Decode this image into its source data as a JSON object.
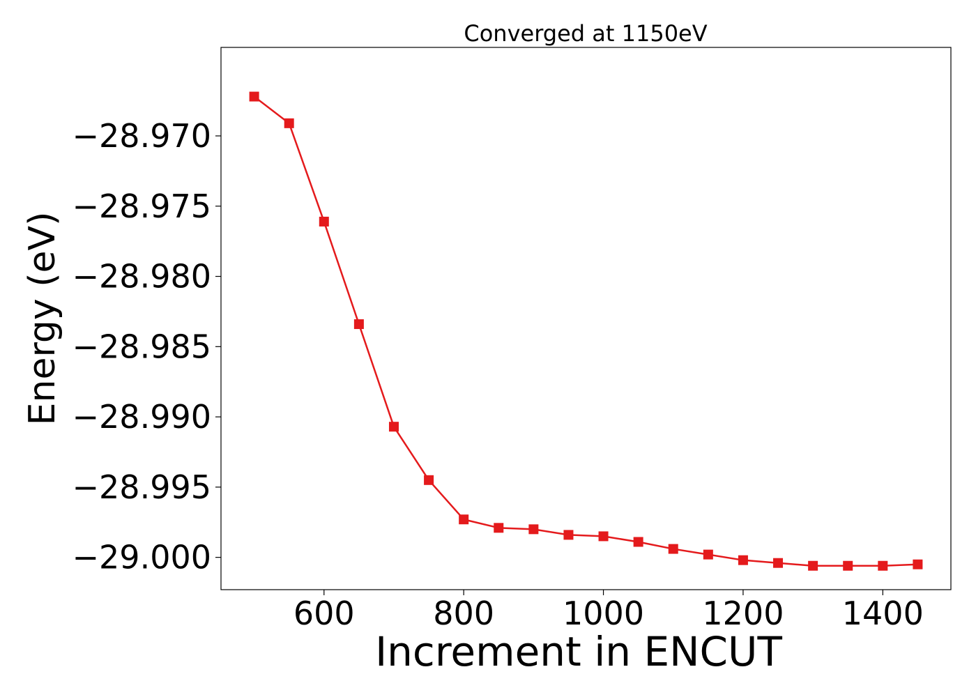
{
  "chart_data": {
    "type": "line",
    "title": "Converged at 1150eV",
    "xlabel": "Increment in ENCUT",
    "ylabel": "Energy (eV)",
    "x": [
      500,
      550,
      600,
      650,
      700,
      750,
      800,
      850,
      900,
      950,
      1000,
      1050,
      1100,
      1150,
      1200,
      1250,
      1300,
      1350,
      1400,
      1450
    ],
    "series": [
      {
        "name": "",
        "color": "#e41a1c",
        "marker": "square",
        "values": [
          -28.9672,
          -28.9691,
          -28.9761,
          -28.9834,
          -28.9907,
          -28.9945,
          -28.9973,
          -28.9979,
          -28.998,
          -28.9984,
          -28.9985,
          -28.9989,
          -28.9994,
          -28.9998,
          -29.0002,
          -29.0004,
          -29.0006,
          -29.0006,
          -29.0006,
          -29.0005
        ]
      }
    ],
    "xlim": [
      452.5,
      1497.5
    ],
    "ylim": [
      -29.0023,
      -28.9637
    ],
    "xticks": [
      600,
      800,
      1000,
      1200,
      1400
    ],
    "xtick_labels": [
      "600",
      "800",
      "1000",
      "1200",
      "1400"
    ],
    "yticks": [
      -28.97,
      -28.975,
      -28.98,
      -28.985,
      -28.99,
      -28.995,
      -29.0
    ],
    "ytick_labels": [
      "−28.970",
      "−28.975",
      "−28.980",
      "−28.985",
      "−28.990",
      "−28.995",
      "−29.000"
    ],
    "grid": false,
    "legend": "none"
  }
}
